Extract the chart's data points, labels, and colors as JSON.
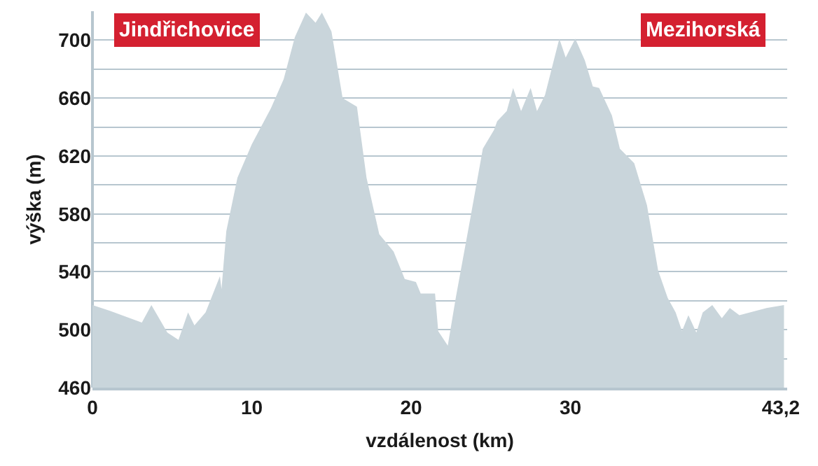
{
  "chart_data": {
    "type": "area",
    "xlabel": "vzdálenost (km)",
    "ylabel": "výška (m)",
    "annotations": [
      "Jindřichovice",
      "Mezihorská"
    ],
    "x": [
      0,
      1.1,
      3.1,
      3.7,
      4.7,
      5.4,
      6.0,
      6.4,
      7.1,
      8.0,
      8.1,
      8.4,
      9.1,
      10.0,
      11.2,
      12.0,
      12.7,
      13.4,
      14.0,
      14.4,
      15.0,
      15.7,
      16.6,
      17.2,
      18.0,
      18.9,
      19.6,
      20.3,
      20.6,
      21.5,
      21.7,
      22.3,
      22.8,
      23.7,
      24.5,
      25.2,
      25.4,
      26.0,
      26.4,
      26.9,
      27.5,
      27.9,
      28.4,
      29.3,
      29.7,
      30.3,
      30.9,
      31.4,
      31.8,
      32.6,
      33.1,
      34.0,
      34.8,
      35.5,
      36.1,
      36.6,
      37.0,
      37.4,
      37.9,
      38.3,
      38.9,
      39.5,
      40.0,
      40.6,
      42.3,
      43.4
    ],
    "series": [
      {
        "color": "#c9d5db",
        "values": [
          517,
          513,
          505,
          517,
          498,
          493,
          512,
          503,
          512,
          537,
          528,
          568,
          605,
          628,
          653,
          673,
          702,
          719,
          712,
          719,
          706,
          660,
          654,
          605,
          566,
          554,
          535,
          533,
          525,
          525,
          499,
          489,
          522,
          576,
          625,
          638,
          644,
          651,
          667,
          651,
          667,
          651,
          662,
          701,
          688,
          701,
          686,
          668,
          667,
          648,
          625,
          615,
          586,
          541,
          522,
          512,
          499,
          510,
          498,
          512,
          517,
          508,
          515,
          510,
          515,
          517
        ]
      }
    ],
    "xlim": [
      0,
      43.6
    ],
    "ylim": [
      460,
      720
    ],
    "xticks": [
      0,
      10,
      20,
      30,
      {
        "value": 43.2,
        "label": "43,2"
      }
    ],
    "yticks": [
      460,
      {
        "value": 480,
        "label": null
      },
      500,
      {
        "value": 520,
        "label": null
      },
      540,
      {
        "value": 560,
        "label": null
      },
      580,
      {
        "value": 600,
        "label": null
      },
      620,
      {
        "value": 640,
        "label": null
      },
      660,
      {
        "value": 680,
        "label": null
      },
      700
    ],
    "grid": "y"
  }
}
